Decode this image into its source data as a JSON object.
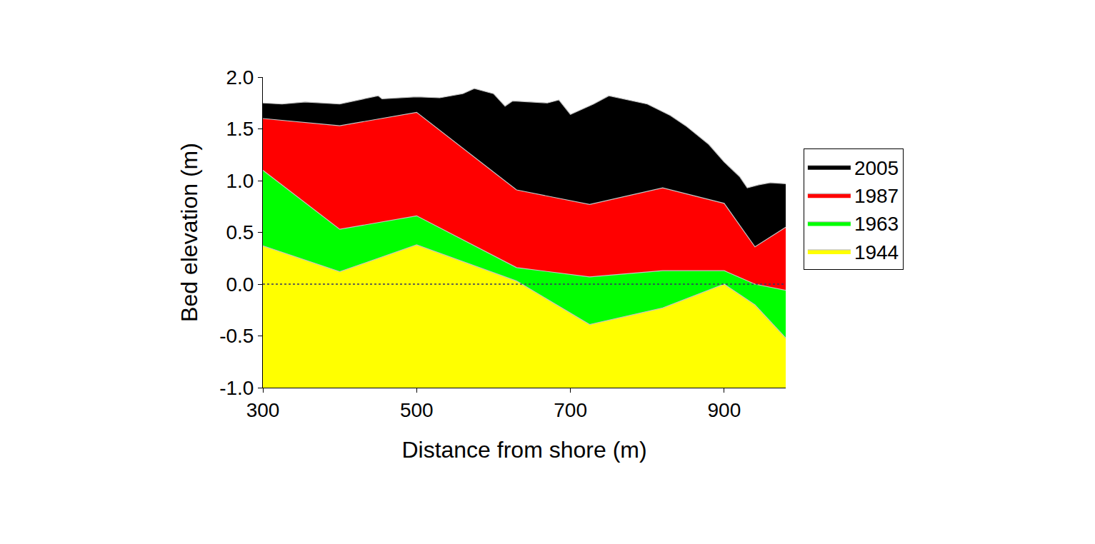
{
  "chart_data": {
    "type": "area",
    "x_label": "Distance from shore (m)",
    "y_label": "Bed elevation (m)",
    "xlim": [
      300,
      980
    ],
    "xticks": [
      300,
      500,
      700,
      900
    ],
    "ylim": [
      -1,
      2
    ],
    "yticks": [
      {
        "value": -1,
        "label": "-1.0"
      },
      {
        "value": -0.5,
        "label": "-0.5"
      },
      {
        "value": 0,
        "label": "0.0"
      },
      {
        "value": 0.5,
        "label": "0.5"
      },
      {
        "value": 1,
        "label": "1.0"
      },
      {
        "value": 1.5,
        "label": "1.5"
      },
      {
        "value": 2,
        "label": "2.0"
      }
    ],
    "grid": false,
    "legend": "right",
    "series": [
      {
        "name": "2005",
        "color": "#000000",
        "x": [
          300,
          325,
          355,
          400,
          450,
          455,
          500,
          530,
          560,
          575,
          600,
          615,
          625,
          650,
          670,
          685,
          700,
          730,
          750,
          800,
          830,
          850,
          880,
          900,
          920,
          930,
          945,
          960,
          980
        ],
        "values": [
          1.75,
          1.74,
          1.76,
          1.74,
          1.82,
          1.79,
          1.81,
          1.8,
          1.84,
          1.89,
          1.84,
          1.72,
          1.77,
          1.76,
          1.75,
          1.78,
          1.64,
          1.74,
          1.82,
          1.74,
          1.63,
          1.53,
          1.35,
          1.18,
          1.04,
          0.93,
          0.96,
          0.98,
          0.97
        ]
      },
      {
        "name": "1987",
        "color": "#ff0000",
        "x": [
          300,
          400,
          500,
          630,
          725,
          820,
          900,
          940,
          980
        ],
        "values": [
          1.6,
          1.53,
          1.66,
          0.91,
          0.77,
          0.93,
          0.78,
          0.36,
          0.55
        ]
      },
      {
        "name": "1963",
        "color": "#00ff00",
        "x": [
          300,
          400,
          500,
          630,
          725,
          820,
          900,
          940,
          980
        ],
        "values": [
          1.1,
          0.53,
          0.66,
          0.16,
          0.07,
          0.13,
          0.13,
          0.0,
          -0.06
        ]
      },
      {
        "name": "1944",
        "color": "#ffff00",
        "x": [
          300,
          400,
          500,
          630,
          725,
          820,
          900,
          940,
          980
        ],
        "values": [
          0.37,
          0.12,
          0.38,
          0.03,
          -0.39,
          -0.23,
          0.0,
          -0.2,
          -0.52
        ]
      }
    ]
  }
}
